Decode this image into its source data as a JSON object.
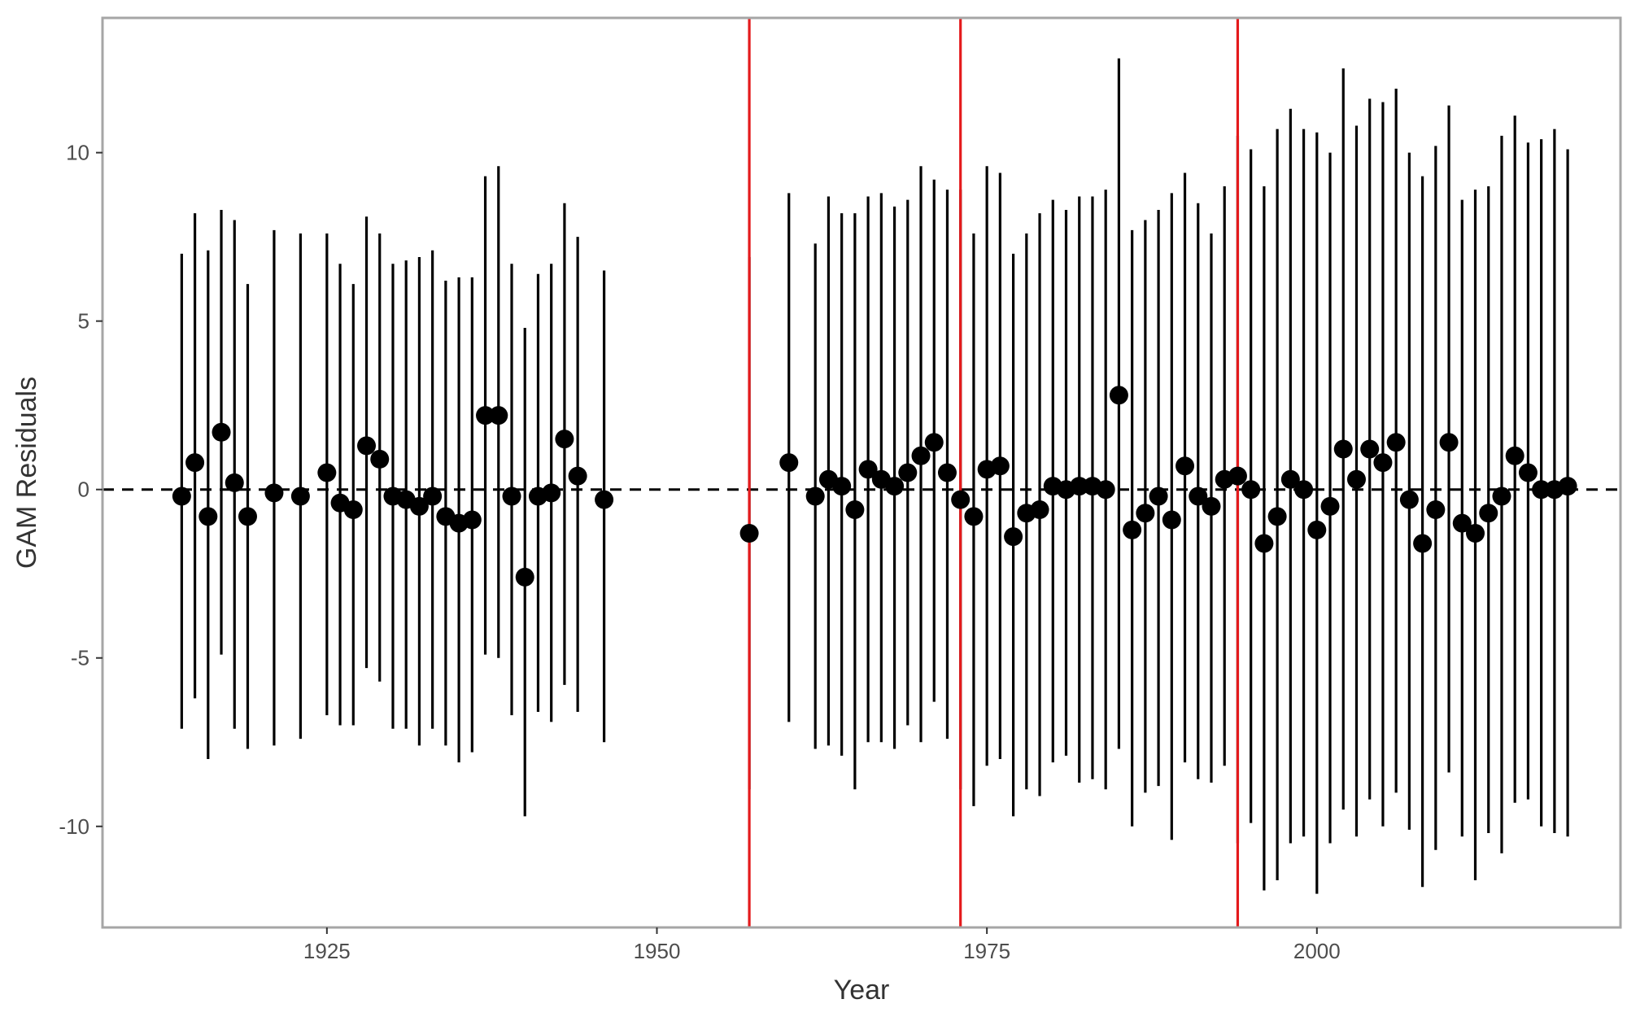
{
  "chart_data": {
    "type": "scatter",
    "xlabel": "Year",
    "ylabel": "GAM Residuals",
    "xlim": [
      1908,
      2023
    ],
    "ylim": [
      -13,
      14
    ],
    "x_ticks": [
      1925,
      1950,
      1975,
      2000
    ],
    "y_ticks": [
      -10,
      -5,
      0,
      5,
      10
    ],
    "x_tick_labels": [
      "1925",
      "1950",
      "1975",
      "2000"
    ],
    "y_tick_labels": [
      "-10",
      "-5",
      "0",
      "5",
      "10"
    ],
    "grid": false,
    "reference_line": {
      "y": 0,
      "style": "dashed",
      "color": "#000000"
    },
    "vertical_lines": {
      "x": [
        1957,
        1973,
        1994
      ],
      "color": "#e41a1c"
    },
    "colors": {
      "points": "#000000",
      "errorbars": "#000000",
      "panel_border": "#a6a6a6"
    },
    "points": [
      {
        "x": 1914,
        "y": -0.2,
        "lo": -7.1,
        "hi": 7.0
      },
      {
        "x": 1915,
        "y": 0.8,
        "lo": -6.2,
        "hi": 8.2
      },
      {
        "x": 1916,
        "y": -0.8,
        "lo": -8.0,
        "hi": 7.1
      },
      {
        "x": 1917,
        "y": 1.7,
        "lo": -4.9,
        "hi": 8.3
      },
      {
        "x": 1918,
        "y": 0.2,
        "lo": -7.1,
        "hi": 8.0
      },
      {
        "x": 1919,
        "y": -0.8,
        "lo": -7.7,
        "hi": 6.1
      },
      {
        "x": 1921,
        "y": -0.1,
        "lo": -7.6,
        "hi": 7.7
      },
      {
        "x": 1923,
        "y": -0.2,
        "lo": -7.4,
        "hi": 7.6
      },
      {
        "x": 1925,
        "y": 0.5,
        "lo": -6.7,
        "hi": 7.6
      },
      {
        "x": 1926,
        "y": -0.4,
        "lo": -7.0,
        "hi": 6.7
      },
      {
        "x": 1927,
        "y": -0.6,
        "lo": -7.0,
        "hi": 6.1
      },
      {
        "x": 1928,
        "y": 1.3,
        "lo": -5.3,
        "hi": 8.1
      },
      {
        "x": 1929,
        "y": 0.9,
        "lo": -5.7,
        "hi": 7.6
      },
      {
        "x": 1930,
        "y": -0.2,
        "lo": -7.1,
        "hi": 6.7
      },
      {
        "x": 1931,
        "y": -0.3,
        "lo": -7.1,
        "hi": 6.8
      },
      {
        "x": 1932,
        "y": -0.5,
        "lo": -7.6,
        "hi": 6.9
      },
      {
        "x": 1933,
        "y": -0.2,
        "lo": -7.1,
        "hi": 7.1
      },
      {
        "x": 1934,
        "y": -0.8,
        "lo": -7.6,
        "hi": 6.2
      },
      {
        "x": 1935,
        "y": -1.0,
        "lo": -8.1,
        "hi": 6.3
      },
      {
        "x": 1936,
        "y": -0.9,
        "lo": -7.8,
        "hi": 6.3
      },
      {
        "x": 1937,
        "y": 2.2,
        "lo": -4.9,
        "hi": 9.3
      },
      {
        "x": 1938,
        "y": 2.2,
        "lo": -5.0,
        "hi": 9.6
      },
      {
        "x": 1939,
        "y": -0.2,
        "lo": -6.7,
        "hi": 6.7
      },
      {
        "x": 1940,
        "y": -2.6,
        "lo": -9.7,
        "hi": 4.8
      },
      {
        "x": 1941,
        "y": -0.2,
        "lo": -6.6,
        "hi": 6.4
      },
      {
        "x": 1942,
        "y": -0.1,
        "lo": -6.9,
        "hi": 6.7
      },
      {
        "x": 1943,
        "y": 1.5,
        "lo": -5.8,
        "hi": 8.5
      },
      {
        "x": 1944,
        "y": 0.4,
        "lo": -6.6,
        "hi": 7.5
      },
      {
        "x": 1946,
        "y": -0.3,
        "lo": -7.5,
        "hi": 6.5
      },
      {
        "x": 1957,
        "y": -1.3,
        "lo": -8.9,
        "hi": 6.9
      },
      {
        "x": 1960,
        "y": 0.8,
        "lo": -6.9,
        "hi": 8.8
      },
      {
        "x": 1962,
        "y": -0.2,
        "lo": -7.7,
        "hi": 7.3
      },
      {
        "x": 1963,
        "y": 0.3,
        "lo": -7.6,
        "hi": 8.7
      },
      {
        "x": 1964,
        "y": 0.1,
        "lo": -7.9,
        "hi": 8.2
      },
      {
        "x": 1965,
        "y": -0.6,
        "lo": -8.9,
        "hi": 8.2
      },
      {
        "x": 1966,
        "y": 0.6,
        "lo": -7.5,
        "hi": 8.7
      },
      {
        "x": 1967,
        "y": 0.3,
        "lo": -7.5,
        "hi": 8.8
      },
      {
        "x": 1968,
        "y": 0.1,
        "lo": -7.7,
        "hi": 8.4
      },
      {
        "x": 1969,
        "y": 0.5,
        "lo": -7.0,
        "hi": 8.6
      },
      {
        "x": 1970,
        "y": 1.0,
        "lo": -7.5,
        "hi": 9.6
      },
      {
        "x": 1971,
        "y": 1.4,
        "lo": -6.3,
        "hi": 9.2
      },
      {
        "x": 1972,
        "y": 0.5,
        "lo": -7.4,
        "hi": 8.9
      },
      {
        "x": 1973,
        "y": -0.3,
        "lo": -8.9,
        "hi": 8.9
      },
      {
        "x": 1974,
        "y": -0.8,
        "lo": -9.4,
        "hi": 7.6
      },
      {
        "x": 1975,
        "y": 0.6,
        "lo": -8.2,
        "hi": 9.6
      },
      {
        "x": 1976,
        "y": 0.7,
        "lo": -8.0,
        "hi": 9.4
      },
      {
        "x": 1977,
        "y": -1.4,
        "lo": -9.7,
        "hi": 7.0
      },
      {
        "x": 1978,
        "y": -0.7,
        "lo": -8.9,
        "hi": 7.6
      },
      {
        "x": 1979,
        "y": -0.6,
        "lo": -9.1,
        "hi": 8.2
      },
      {
        "x": 1980,
        "y": 0.1,
        "lo": -8.1,
        "hi": 8.6
      },
      {
        "x": 1981,
        "y": 0.0,
        "lo": -7.9,
        "hi": 8.3
      },
      {
        "x": 1982,
        "y": 0.1,
        "lo": -8.7,
        "hi": 8.7
      },
      {
        "x": 1983,
        "y": 0.1,
        "lo": -8.6,
        "hi": 8.7
      },
      {
        "x": 1984,
        "y": 0.0,
        "lo": -8.9,
        "hi": 8.9
      },
      {
        "x": 1985,
        "y": 2.8,
        "lo": -7.7,
        "hi": 12.8
      },
      {
        "x": 1986,
        "y": -1.2,
        "lo": -10.0,
        "hi": 7.7
      },
      {
        "x": 1987,
        "y": -0.7,
        "lo": -9.0,
        "hi": 8.0
      },
      {
        "x": 1988,
        "y": -0.2,
        "lo": -8.8,
        "hi": 8.3
      },
      {
        "x": 1989,
        "y": -0.9,
        "lo": -10.4,
        "hi": 8.8
      },
      {
        "x": 1990,
        "y": 0.7,
        "lo": -8.1,
        "hi": 9.4
      },
      {
        "x": 1991,
        "y": -0.2,
        "lo": -8.6,
        "hi": 8.5
      },
      {
        "x": 1992,
        "y": -0.5,
        "lo": -8.7,
        "hi": 7.6
      },
      {
        "x": 1993,
        "y": 0.3,
        "lo": -8.2,
        "hi": 9.0
      },
      {
        "x": 1994,
        "y": 0.4,
        "lo": -10.5,
        "hi": 10.5
      },
      {
        "x": 1995,
        "y": 0.0,
        "lo": -9.9,
        "hi": 10.1
      },
      {
        "x": 1996,
        "y": -1.6,
        "lo": -11.9,
        "hi": 9.0
      },
      {
        "x": 1997,
        "y": -0.8,
        "lo": -11.6,
        "hi": 10.7
      },
      {
        "x": 1998,
        "y": 0.3,
        "lo": -10.5,
        "hi": 11.3
      },
      {
        "x": 1999,
        "y": 0.0,
        "lo": -10.3,
        "hi": 10.7
      },
      {
        "x": 2000,
        "y": -1.2,
        "lo": -12.0,
        "hi": 10.6
      },
      {
        "x": 2001,
        "y": -0.5,
        "lo": -10.5,
        "hi": 10.0
      },
      {
        "x": 2002,
        "y": 1.2,
        "lo": -9.5,
        "hi": 12.5
      },
      {
        "x": 2003,
        "y": 0.3,
        "lo": -10.3,
        "hi": 10.8
      },
      {
        "x": 2004,
        "y": 1.2,
        "lo": -9.2,
        "hi": 11.6
      },
      {
        "x": 2005,
        "y": 0.8,
        "lo": -10.0,
        "hi": 11.5
      },
      {
        "x": 2006,
        "y": 1.4,
        "lo": -9.0,
        "hi": 11.9
      },
      {
        "x": 2007,
        "y": -0.3,
        "lo": -10.1,
        "hi": 10.0
      },
      {
        "x": 2008,
        "y": -1.6,
        "lo": -11.8,
        "hi": 9.3
      },
      {
        "x": 2009,
        "y": -0.6,
        "lo": -10.7,
        "hi": 10.2
      },
      {
        "x": 2010,
        "y": 1.4,
        "lo": -8.4,
        "hi": 11.4
      },
      {
        "x": 2011,
        "y": -1.0,
        "lo": -10.3,
        "hi": 8.6
      },
      {
        "x": 2012,
        "y": -1.3,
        "lo": -11.6,
        "hi": 8.9
      },
      {
        "x": 2013,
        "y": -0.7,
        "lo": -10.2,
        "hi": 9.0
      },
      {
        "x": 2014,
        "y": -0.2,
        "lo": -10.8,
        "hi": 10.5
      },
      {
        "x": 2015,
        "y": 1.0,
        "lo": -9.3,
        "hi": 11.1
      },
      {
        "x": 2016,
        "y": 0.5,
        "lo": -9.2,
        "hi": 10.3
      },
      {
        "x": 2017,
        "y": 0.0,
        "lo": -10.0,
        "hi": 10.4
      },
      {
        "x": 2018,
        "y": 0.0,
        "lo": -10.2,
        "hi": 10.7
      },
      {
        "x": 2019,
        "y": 0.1,
        "lo": -10.3,
        "hi": 10.1
      }
    ]
  }
}
